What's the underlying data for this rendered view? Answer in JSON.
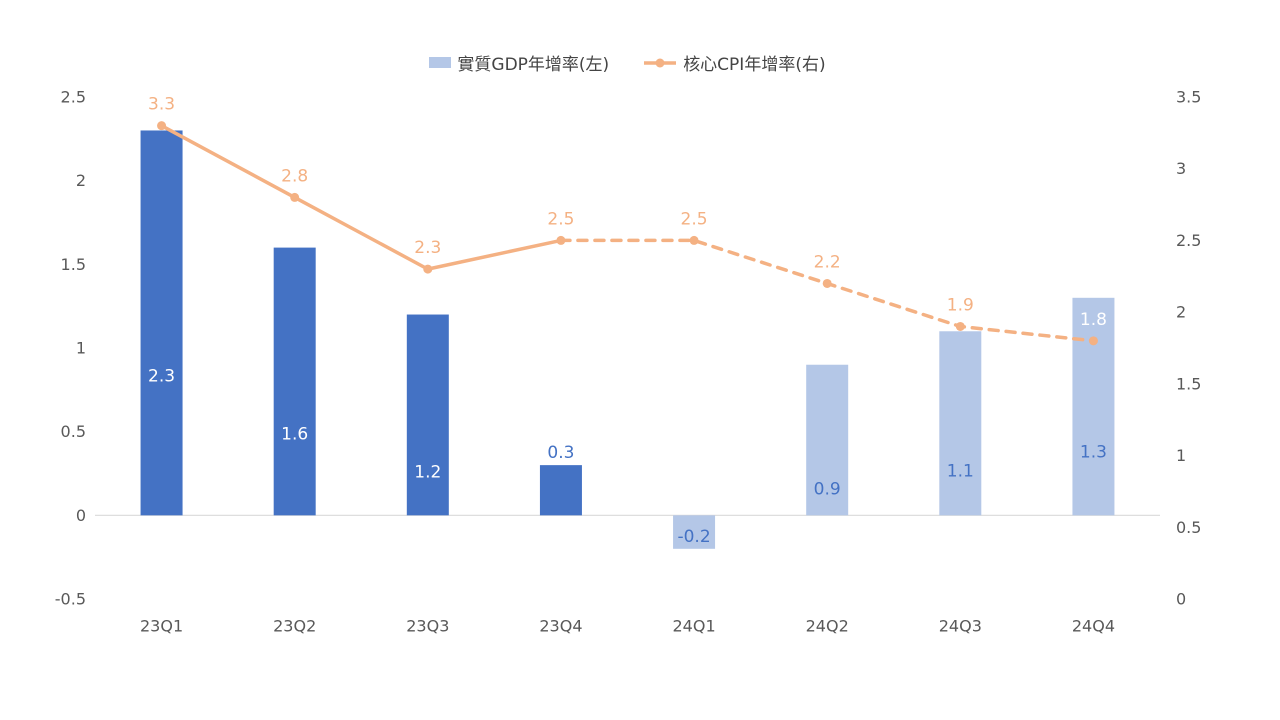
{
  "chart_data": {
    "type": "combo",
    "categories": [
      "23Q1",
      "23Q2",
      "23Q3",
      "23Q4",
      "24Q1",
      "24Q2",
      "24Q3",
      "24Q4"
    ],
    "series": [
      {
        "name": "實質GDP年增率(左)",
        "type": "bar",
        "axis": "left",
        "values": [
          2.3,
          1.6,
          1.2,
          0.3,
          -0.2,
          0.9,
          1.1,
          1.3
        ],
        "color_actual": "#4472C4",
        "color_forecast": "#B4C7E7",
        "forecast_from_index": 4,
        "label_colors": [
          "#FFFFFF",
          "#FFFFFF",
          "#FFFFFF",
          "#4472C4",
          "#4472C4",
          "#4472C4",
          "#4472C4",
          "#4472C4"
        ],
        "label_placements": [
          "inside",
          "inside",
          "inside",
          "above",
          "inside-negative",
          "inside",
          "inside",
          "inside"
        ]
      },
      {
        "name": "核心CPI年增率(右)",
        "type": "line",
        "axis": "right",
        "values": [
          3.3,
          2.8,
          2.3,
          2.5,
          2.5,
          2.2,
          1.9,
          1.8
        ],
        "color": "#F4B183",
        "dashed_from_index": 3,
        "label_colors": [
          "#F4B183",
          "#F4B183",
          "#F4B183",
          "#F4B183",
          "#F4B183",
          "#F4B183",
          "#F4B183",
          "#FFFFFF"
        ]
      }
    ],
    "left_axis": {
      "min": -0.5,
      "max": 2.5,
      "ticks": [
        "2.5",
        "2",
        "1.5",
        "1",
        "0.5",
        "0",
        "-0.5"
      ]
    },
    "right_axis": {
      "min": 0,
      "max": 3.5,
      "ticks": [
        "3.5",
        "3",
        "2.5",
        "2",
        "1.5",
        "1",
        "0.5",
        "0"
      ]
    },
    "legend": {
      "position": "top",
      "items": [
        {
          "label": "實質GDP年增率(左)",
          "swatch": "#B4C7E7",
          "marker": "square"
        },
        {
          "label": "核心CPI年增率(右)",
          "swatch": "#F4B183",
          "marker": "line-dot"
        }
      ]
    },
    "grid": "off",
    "colors": {
      "axis_line": "#D9D9D9",
      "tick_label": "#595959",
      "category_label": "#595959",
      "legend_text": "#444444"
    }
  }
}
